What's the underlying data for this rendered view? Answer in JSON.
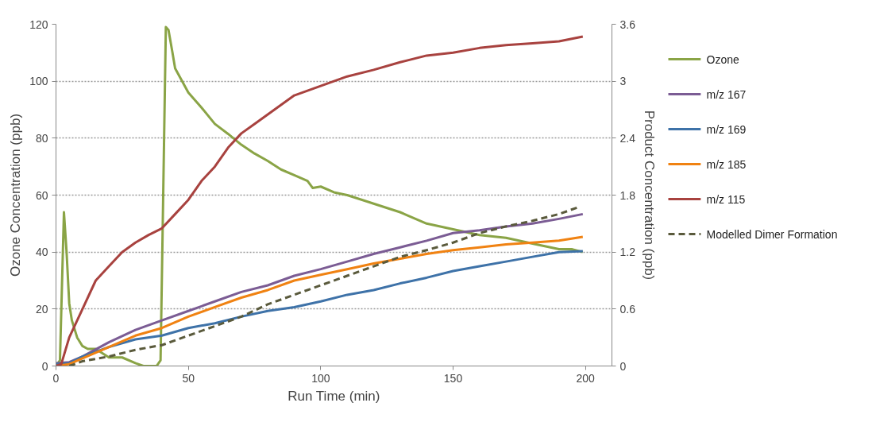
{
  "chart_data": {
    "type": "line",
    "xlabel": "Run Time (min)",
    "ylabel": "Ozone Concentration (ppb)",
    "y2label": "Product Concentration (ppb)",
    "xlim": [
      0,
      210
    ],
    "xticks": [
      0,
      50,
      100,
      150,
      200
    ],
    "ylim": [
      0,
      120
    ],
    "yticks": [
      0,
      20,
      40,
      60,
      80,
      100,
      120
    ],
    "y2lim": [
      0,
      3.6
    ],
    "y2ticks": [
      0,
      0.6,
      1.2,
      1.8,
      2.4,
      3,
      3.6
    ],
    "grid": "y",
    "legend": "right",
    "marker": "none",
    "series": [
      {
        "name": "Ozone",
        "color": "#8aa446",
        "x": [
          0,
          1.5,
          3,
          4,
          5,
          6,
          8,
          10,
          12,
          15,
          20,
          25,
          30,
          33,
          38,
          39.5,
          40.5,
          41.5,
          42.5,
          44,
          45,
          50,
          55,
          60,
          65,
          70,
          75,
          80,
          85,
          90,
          95,
          97,
          100,
          105,
          110,
          120,
          130,
          140,
          150,
          160,
          170,
          180,
          190,
          195,
          199
        ],
        "values": [
          0,
          2,
          54,
          40,
          22,
          16,
          10,
          7,
          6,
          6,
          3,
          3,
          1,
          0,
          0,
          2,
          60,
          119,
          118,
          110,
          104.5,
          96,
          90.7,
          85,
          81.5,
          77.7,
          74.6,
          72,
          69,
          67,
          65,
          62.5,
          63,
          61,
          60,
          57,
          54,
          50,
          48,
          46,
          45,
          43,
          41,
          41,
          40
        ]
      },
      {
        "name": "m/z 167",
        "color": "#7b5c94",
        "axis": "y2",
        "x": [
          0,
          5,
          10,
          20,
          30,
          40,
          50,
          60,
          70,
          80,
          90,
          100,
          110,
          120,
          130,
          140,
          150,
          160,
          170,
          180,
          190,
          199
        ],
        "values": [
          0.03,
          0.04,
          0.1,
          0.25,
          0.38,
          0.48,
          0.58,
          0.68,
          0.78,
          0.85,
          0.95,
          1.02,
          1.1,
          1.18,
          1.25,
          1.32,
          1.4,
          1.43,
          1.47,
          1.5,
          1.55,
          1.6
        ]
      },
      {
        "name": "m/z 169",
        "color": "#3e72a8",
        "axis": "y2",
        "x": [
          0,
          5,
          10,
          20,
          30,
          40,
          50,
          60,
          70,
          80,
          90,
          100,
          110,
          120,
          130,
          140,
          150,
          160,
          170,
          180,
          190,
          199
        ],
        "values": [
          0.02,
          0.03,
          0.1,
          0.2,
          0.28,
          0.32,
          0.4,
          0.45,
          0.52,
          0.58,
          0.62,
          0.68,
          0.75,
          0.8,
          0.87,
          0.93,
          1.0,
          1.05,
          1.1,
          1.15,
          1.2,
          1.21
        ]
      },
      {
        "name": "m/z 185",
        "color": "#f08212",
        "axis": "y2",
        "x": [
          0,
          5,
          10,
          20,
          30,
          40,
          50,
          60,
          70,
          80,
          90,
          100,
          110,
          120,
          130,
          140,
          150,
          160,
          170,
          180,
          190,
          199
        ],
        "values": [
          0,
          0.02,
          0.08,
          0.2,
          0.32,
          0.4,
          0.52,
          0.62,
          0.72,
          0.8,
          0.9,
          0.96,
          1.02,
          1.08,
          1.13,
          1.18,
          1.22,
          1.25,
          1.28,
          1.3,
          1.32,
          1.36
        ]
      },
      {
        "name": "m/z 115",
        "color": "#a8423f",
        "axis": "y2",
        "x": [
          0,
          2,
          5,
          10,
          15,
          20,
          25,
          30,
          35,
          40,
          45,
          50,
          55,
          60,
          65,
          70,
          75,
          80,
          85,
          90,
          95,
          100,
          110,
          120,
          130,
          140,
          150,
          160,
          170,
          180,
          190,
          199
        ],
        "values": [
          0,
          0.02,
          0.3,
          0.6,
          0.9,
          1.05,
          1.2,
          1.3,
          1.38,
          1.45,
          1.6,
          1.75,
          1.95,
          2.1,
          2.3,
          2.45,
          2.55,
          2.65,
          2.75,
          2.85,
          2.9,
          2.95,
          3.05,
          3.12,
          3.2,
          3.27,
          3.3,
          3.35,
          3.38,
          3.4,
          3.42,
          3.47
        ]
      },
      {
        "name": "Modelled Dimer Formation",
        "color": "#5a5a3c",
        "axis": "y2",
        "line_style": "dashed",
        "x": [
          5,
          10,
          20,
          30,
          40,
          50,
          60,
          70,
          80,
          90,
          100,
          110,
          120,
          130,
          140,
          150,
          160,
          170,
          180,
          190,
          198
        ],
        "values": [
          0,
          0.05,
          0.1,
          0.17,
          0.22,
          0.32,
          0.42,
          0.52,
          0.65,
          0.75,
          0.85,
          0.95,
          1.05,
          1.15,
          1.22,
          1.3,
          1.4,
          1.47,
          1.53,
          1.6,
          1.68
        ]
      }
    ]
  }
}
